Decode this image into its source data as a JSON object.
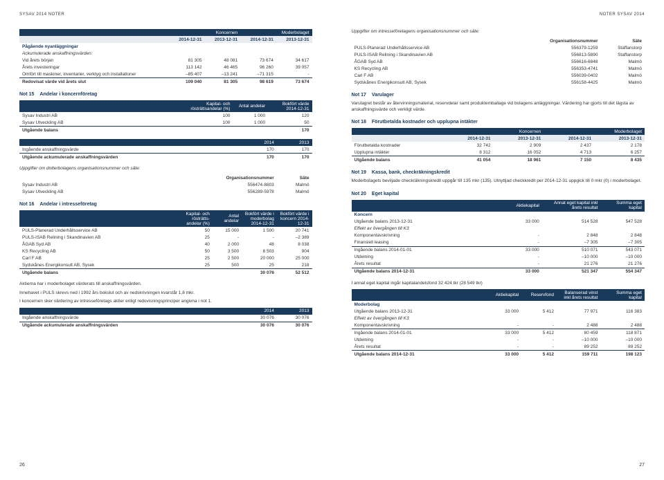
{
  "header_left": "SYSAV 2014  NOTER",
  "header_right": "NOTER  SYSAV 2014",
  "pgnum_left": "26",
  "pgnum_right": "27",
  "t1": {
    "h1": "Koncernen",
    "h2": "Moderbolaget",
    "c1": "2014-12-31",
    "c2": "2013-12-31",
    "c3": "2014-12-31",
    "c4": "2013-12-31",
    "r0": "Pågående nyanläggningar",
    "r0a": "Ackumulerade anskaffningsvärden:",
    "r1": "Vid årets början",
    "v1a": "81 305",
    "v1b": "48 081",
    "v1c": "73 674",
    "v1d": "34 617",
    "r2": "Årets investeringar",
    "v2a": "113 142",
    "v2b": "46 465",
    "v2c": "96 260",
    "v2d": "39 057",
    "r3": "Omfört till maskiner, inventarier, verktyg och installationer",
    "v3a": "–85 407",
    "v3b": "–13 241",
    "v3c": "–71 315",
    "v3d": "-",
    "r4": "Redovisat värde vid årets slut",
    "v4a": "109 040",
    "v4b": "81 305",
    "v4c": "98 619",
    "v4d": "73 674"
  },
  "n15": {
    "title": "Not 15",
    "sub": "Andelar i koncernföretag"
  },
  "t2": {
    "h1": "Kapital- och rösträttsandelar (%)",
    "h2": "Antal andelar",
    "h3": "Bokfört värde 2014-12-31",
    "r1": "Sysav Industri AB",
    "v1a": "100",
    "v1b": "1 000",
    "v1c": "120",
    "r2": "Sysav Utveckling AB",
    "v2a": "100",
    "v2b": "1 000",
    "v2c": "50",
    "r3": "Utgående balans",
    "v3c": "170"
  },
  "t3": {
    "h1": "2014",
    "h2": "2013",
    "r1": "Ingående anskaffningsvärde",
    "v1a": "170",
    "v1b": "170",
    "r2": "Utgående ackumulerade anskaffningsvärden",
    "v2a": "170",
    "v2b": "170"
  },
  "t4": {
    "intro": "Uppgifter om dotterbolagens organisationsnummer och säte:",
    "h1": "Organisationsnummer",
    "h2": "Säte",
    "r1": "Sysav Industri AB",
    "v1a": "556474-8803",
    "v1b": "Malmö",
    "r2": "Sysav Utveckling AB",
    "v2a": "556289-5978",
    "v2b": "Malmö"
  },
  "n16": {
    "title": "Not 16",
    "sub": "Andelar i intresseföretag"
  },
  "t5": {
    "h1": "Kapital- och rösträtts-andelar (%)",
    "h2": "Antal andelar",
    "h3": "Bokfört värde i moderbolag 2014-12-31",
    "h4": "Bokfört värde i koncern 2014-12-31",
    "r1": "PULS-Planerad Underhållsservice AB",
    "v1a": "50",
    "v1b": "15 000",
    "v1c": "1 500",
    "v1d": "20 741",
    "r2": "PULS-ISAB Relining i Skandinavien AB",
    "v2a": "25",
    "v2b": "-",
    "v2c": "-",
    "v2d": "–2 389",
    "r3": "ÅGAB Syd AB",
    "v3a": "40",
    "v3b": "2 000",
    "v3c": "48",
    "v3d": "8 038",
    "r4": "KS Recycling AB",
    "v4a": "50",
    "v4b": "3 500",
    "v4c": "8 503",
    "v4d": "904",
    "r5": "Carl F AB",
    "v5a": "25",
    "v5b": "2 500",
    "v5c": "20 000",
    "v5d": "25 000",
    "r6": "Sydskånes Energikonsult AB, Sysek",
    "v6a": "25",
    "v6b": "500",
    "v6c": "25",
    "v6d": "218",
    "r7": "Utgående balans",
    "v7c": "30 076",
    "v7d": "52 512"
  },
  "t5note1": "Aktierna har i moderbolaget värderats till anskaffningsvärden.",
  "t5note2": "Innehavet i PULS skrevs ned i 1992 års bokslut och av nedskrivningen kvarstår 1,8 mkr.",
  "t5note3": "I koncernen sker värdering av intresseföretags aktier enligt redovisningsprinciper angivna i not 1.",
  "t6": {
    "h1": "2014",
    "h2": "2013",
    "r1": "Ingående anskaffningsvärde",
    "v1a": "30 076",
    "v1b": "30 076",
    "r2": "Utgående ackumulerade anskaffningsvärden",
    "v2a": "30 076",
    "v2b": "30 076"
  },
  "t7": {
    "intro": "Uppgifter om intresseföretagens organisationsnummer och säte:",
    "h1": "Organisationsnummer",
    "h2": "Säte",
    "r1": "PULS-Planerad Underhållsservice AB",
    "v1a": "556379-1259",
    "v1b": "Staffanstorp",
    "r2": "PULS-ISAB Relining i Skandinavien AB",
    "v2a": "556813-5890",
    "v2b": "Staffanstorp",
    "r3": "ÅGAB Syd AB",
    "v3a": "556616-6848",
    "v3b": "Malmö",
    "r4": "KS Recycling AB",
    "v4a": "556353-4741",
    "v4b": "Malmö",
    "r5": "Carl F AB",
    "v5a": "556039-0402",
    "v5b": "Malmö",
    "r6": "Sydskånes Energikonsult AB, Sysek",
    "v6a": "556158-4425",
    "v6b": "Malmö"
  },
  "n17": {
    "title": "Not 17",
    "sub": "Varulager"
  },
  "n17text": "Varulagret består av återvinningsmaterial, reservdelar samt produktemballage vid bolagens anläggningar. Värdering har gjorts till det lägsta av anskaffningsvärde och verkligt värde.",
  "n18": {
    "title": "Not 18",
    "sub": "Förutbetalda kostnader och upplupna intäkter"
  },
  "t8": {
    "h1": "Koncernen",
    "h2": "Moderbolaget",
    "c1": "2014-12-31",
    "c2": "2013-12-31",
    "c3": "2014-12-31",
    "c4": "2013-12-31",
    "r1": "Förutbetalda kostnader",
    "v1a": "32 742",
    "v1b": "2 909",
    "v1c": "2 437",
    "v1d": "2 178",
    "r2": "Upplupna intäkter",
    "v2a": "8 312",
    "v2b": "16 052",
    "v2c": "4 713",
    "v2d": "6 257",
    "r3": "Utgående balans",
    "v3a": "41 054",
    "v3b": "18 961",
    "v3c": "7 150",
    "v3d": "8 435"
  },
  "n19": {
    "title": "Not 19",
    "sub": "Kassa, bank, checkräkningskredit"
  },
  "n19text": "Moderbolagets beviljade checkräkningskredit uppgår till 135 mkr (135). Utnyttjad checkkredit per 2014-12-31 uppgick till 0 mkr (0) i moderbolaget.",
  "n20": {
    "title": "Not 20",
    "sub": "Eget kapital"
  },
  "t9": {
    "h1": "Aktiekapital",
    "h2": "Annat eget kapital inkl årets resultat",
    "h3": "Summa eget kapital",
    "sect": "Koncern",
    "r1": "Utgående balans 2013-12-31",
    "v1a": "33 000",
    "v1b": "514 528",
    "v1c": "547 528",
    "r1b": "Effekt av övergången till K3",
    "r2": "Komponentavskrivning",
    "v2a": "-",
    "v2b": "2 848",
    "v2c": "2 848",
    "r3": "Finansiell leasing",
    "v3a": "-",
    "v3b": "–7 305",
    "v3c": "–7 305",
    "r4": "Ingående balans 2014-01-01",
    "v4a": "33 000",
    "v4b": "510 071",
    "v4c": "543 071",
    "r5": "Utdelning",
    "v5a": "-",
    "v5b": "–10 000",
    "v5c": "–10 000",
    "r6": "Årets resultat",
    "v6a": "-",
    "v6b": "21 276",
    "v6c": "21 276",
    "r7": "Utgående balans 2014-12-31",
    "v7a": "33 000",
    "v7b": "521 347",
    "v7c": "554 347"
  },
  "t9note": "I annat eget kapital ingår kapitalandelsfond 32 424 tkr (28 549 tkr)",
  "t10": {
    "h1": "Aktiekapital",
    "h2": "Reservfond",
    "h3": "Balanserad vinst inkl årets resultat",
    "h4": "Summa eget kapital",
    "sect": "Moderbolag",
    "r1": "Utgående balans 2013-12-31",
    "v1a": "33 000",
    "v1b": "5 412",
    "v1c": "77 971",
    "v1d": "116 383",
    "r1b": "Effekt av övergången till K3",
    "r2": "Komponentavskrivning",
    "v2a": "-",
    "v2b": "-",
    "v2c": "2 488",
    "v2d": "2 488",
    "r3": "Ingående balans 2014-01-01",
    "v3a": "33 000",
    "v3b": "5 412",
    "v3c": "80 459",
    "v3d": "118 871",
    "r4": "Utdelning",
    "v4a": "-",
    "v4b": "-",
    "v4c": "–10 000",
    "v4d": "–10 000",
    "r5": "Årets resultat",
    "v5a": "-",
    "v5b": "-",
    "v5c": "89 252",
    "v5d": "89 252",
    "r6": "Utgående balans 2014-12-31",
    "v6a": "33 000",
    "v6b": "5 412",
    "v6c": "159 711",
    "v6d": "198 123"
  }
}
